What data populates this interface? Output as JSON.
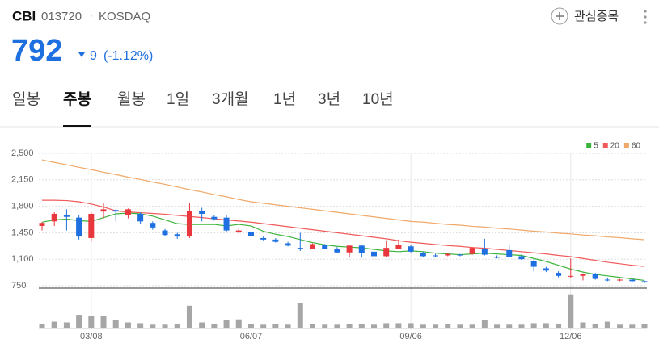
{
  "header": {
    "symbol": "CBI",
    "code": "013720",
    "separator": "·",
    "market": "KOSDAQ",
    "price": 792,
    "change": 9,
    "change_percent": "(-1.12%)",
    "watchlist": "관심종목"
  },
  "tabs": [
    "일봉",
    "주봉",
    "월봉",
    "1일",
    "3개월",
    "1년",
    "3년",
    "10년"
  ],
  "selected_tab": 1,
  "chart_data": {
    "type": "candlestick",
    "categories": [
      null,
      null,
      null,
      null,
      "03/08",
      null,
      null,
      null,
      null,
      null,
      null,
      null,
      null,
      null,
      null,
      null,
      null,
      "06/07",
      null,
      null,
      null,
      null,
      null,
      null,
      null,
      null,
      null,
      null,
      null,
      null,
      "09/06",
      null,
      null,
      null,
      null,
      null,
      null,
      null,
      null,
      null,
      null,
      null,
      null,
      "12/06",
      null,
      null,
      null,
      null,
      null,
      null
    ],
    "open": [
      1540,
      1600,
      1680,
      1650,
      1380,
      1730,
      1750,
      1680,
      1700,
      1580,
      1480,
      1430,
      1400,
      1740,
      1660,
      1650,
      1460,
      1460,
      1380,
      1360,
      1310,
      1250,
      1240,
      1290,
      1240,
      1190,
      1280,
      1200,
      1140,
      1240,
      1270,
      1180,
      1150,
      1150,
      1160,
      1170,
      1240,
      1130,
      1220,
      1140,
      1080,
      980,
      920,
      870,
      880,
      900,
      830,
      820,
      830,
      810
    ],
    "high": [
      1590,
      1720,
      1760,
      1680,
      1720,
      1850,
      1760,
      1770,
      1720,
      1600,
      1500,
      1450,
      1840,
      1780,
      1680,
      1680,
      1500,
      1480,
      1400,
      1380,
      1330,
      1450,
      1310,
      1300,
      1260,
      1290,
      1290,
      1220,
      1350,
      1360,
      1290,
      1200,
      1170,
      1180,
      1170,
      1260,
      1370,
      1150,
      1280,
      1160,
      1100,
      1000,
      940,
      1110,
      900,
      920,
      850,
      840,
      840,
      820
    ],
    "low": [
      1480,
      1540,
      1480,
      1360,
      1330,
      1640,
      1600,
      1640,
      1570,
      1490,
      1400,
      1370,
      1380,
      1600,
      1610,
      1460,
      1440,
      1400,
      1350,
      1320,
      1270,
      1210,
      1230,
      1230,
      1180,
      1130,
      1120,
      1120,
      1130,
      1230,
      1190,
      1130,
      1130,
      1140,
      1140,
      1160,
      1150,
      1110,
      1120,
      1090,
      940,
      930,
      860,
      850,
      820,
      830,
      810,
      810,
      800,
      785
    ],
    "close": [
      1580,
      1700,
      1660,
      1400,
      1700,
      1760,
      1730,
      1760,
      1600,
      1520,
      1420,
      1400,
      1740,
      1700,
      1630,
      1480,
      1480,
      1410,
      1360,
      1330,
      1280,
      1230,
      1300,
      1240,
      1190,
      1280,
      1180,
      1140,
      1250,
      1290,
      1200,
      1140,
      1140,
      1170,
      1150,
      1250,
      1160,
      1120,
      1130,
      1100,
      1000,
      950,
      880,
      880,
      900,
      840,
      820,
      830,
      810,
      792
    ],
    "volume": [
      6,
      9,
      8,
      18,
      16,
      16,
      11,
      8,
      7,
      5,
      5,
      6,
      30,
      8,
      6,
      11,
      12,
      6,
      5,
      6,
      5,
      33,
      6,
      5,
      5,
      6,
      6,
      5,
      7,
      7,
      7,
      5,
      5,
      6,
      5,
      5,
      11,
      5,
      5,
      5,
      7,
      7,
      6,
      45,
      8,
      6,
      9,
      5,
      5,
      6
    ],
    "volume_lim": [
      0,
      50
    ],
    "series": [
      {
        "name": "5",
        "color": "#3cb43c",
        "values": [
          1590,
          1620,
          1630,
          1610,
          1600,
          1650,
          1700,
          1710,
          1700,
          1670,
          1620,
          1570,
          1560,
          1560,
          1560,
          1540,
          1560,
          1540,
          1470,
          1430,
          1400,
          1360,
          1320,
          1290,
          1270,
          1260,
          1250,
          1230,
          1210,
          1200,
          1210,
          1200,
          1180,
          1170,
          1160,
          1170,
          1180,
          1170,
          1160,
          1150,
          1110,
          1070,
          1020,
          970,
          930,
          900,
          880,
          860,
          840,
          820
        ]
      },
      {
        "name": "20",
        "color": "#f05a5a",
        "values": [
          1880,
          1880,
          1875,
          1860,
          1830,
          1790,
          1740,
          1725,
          1715,
          1705,
          1695,
          1680,
          1665,
          1650,
          1635,
          1620,
          1605,
          1590,
          1570,
          1550,
          1530,
          1510,
          1490,
          1470,
          1450,
          1430,
          1410,
          1390,
          1370,
          1345,
          1325,
          1310,
          1295,
          1280,
          1270,
          1255,
          1245,
          1230,
          1215,
          1200,
          1185,
          1170,
          1150,
          1135,
          1110,
          1085,
          1060,
          1040,
          1020,
          1005
        ]
      },
      {
        "name": "60",
        "color": "#f0a868",
        "values": [
          2414,
          2380,
          2350,
          2315,
          2285,
          2250,
          2220,
          2185,
          2155,
          2120,
          2090,
          2055,
          2020,
          1990,
          1955,
          1925,
          1890,
          1860,
          1840,
          1820,
          1800,
          1780,
          1760,
          1740,
          1720,
          1700,
          1680,
          1660,
          1640,
          1620,
          1600,
          1590,
          1575,
          1560,
          1550,
          1535,
          1525,
          1510,
          1500,
          1485,
          1470,
          1460,
          1445,
          1435,
          1420,
          1410,
          1395,
          1385,
          1370,
          1358
        ]
      }
    ],
    "up_color": "#e8383d",
    "down_color": "#1e6fe0",
    "volume_color": "#a6a6a6",
    "ylim": [
      750,
      2500
    ],
    "yticks": [
      750,
      {
        "value": 1100,
        "label": "1,100"
      },
      {
        "value": 1450,
        "label": "1,450"
      },
      {
        "value": 1800,
        "label": "1,800"
      },
      {
        "value": 2150,
        "label": "2,150"
      },
      {
        "value": 2500,
        "label": "2,500"
      }
    ],
    "grid": true,
    "legend": "top-right"
  }
}
